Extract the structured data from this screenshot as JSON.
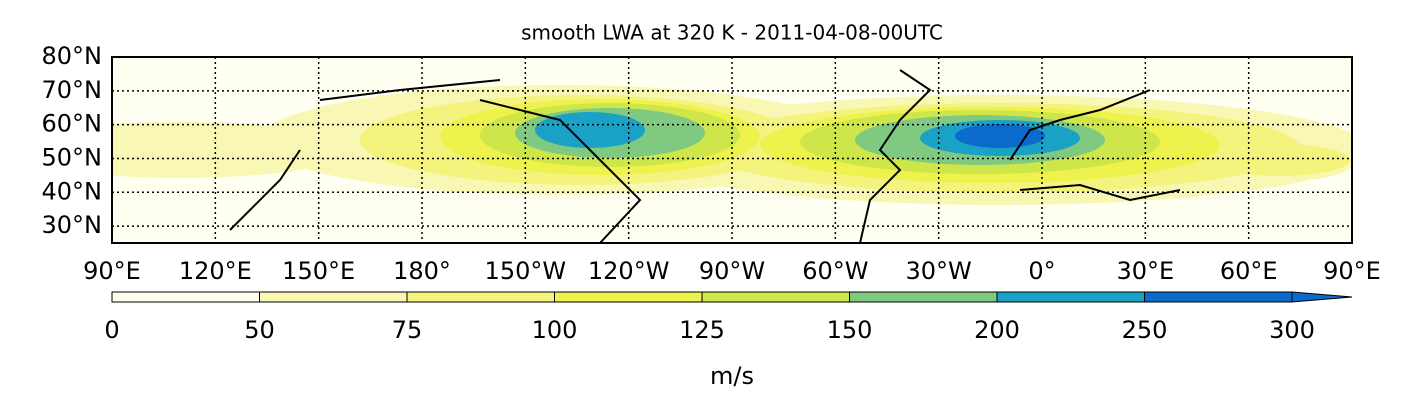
{
  "title": "smooth LWA at 320 K -  2011-04-08-00UTC",
  "map": {
    "lat_range": [
      25,
      80
    ],
    "lat_ticks": [
      {
        "value": 80,
        "label": "80°N"
      },
      {
        "value": 70,
        "label": "70°N"
      },
      {
        "value": 60,
        "label": "60°N"
      },
      {
        "value": 50,
        "label": "50°N"
      },
      {
        "value": 40,
        "label": "40°N"
      },
      {
        "value": 30,
        "label": "30°N"
      }
    ],
    "lon_start": 90,
    "lon_ticks": [
      {
        "value": 90,
        "label": "90°E"
      },
      {
        "value": 120,
        "label": "120°E"
      },
      {
        "value": 150,
        "label": "150°E"
      },
      {
        "value": 180,
        "label": "180°"
      },
      {
        "value": -150,
        "label": "150°W"
      },
      {
        "value": -120,
        "label": "120°W"
      },
      {
        "value": -90,
        "label": "90°W"
      },
      {
        "value": -60,
        "label": "60°W"
      },
      {
        "value": -30,
        "label": "30°W"
      },
      {
        "value": 0,
        "label": "0°"
      },
      {
        "value": 30,
        "label": "30°E"
      },
      {
        "value": 60,
        "label": "60°E"
      },
      {
        "value": 90,
        "label": "90°E"
      }
    ]
  },
  "colorbar": {
    "levels": [
      0,
      50,
      75,
      100,
      125,
      150,
      200,
      250,
      300
    ],
    "colors": [
      "#fffff2",
      "#f8f8b4",
      "#f3f37e",
      "#eef24c",
      "#cfe64a",
      "#7fca80",
      "#1aa2c6",
      "#0a6bcc"
    ],
    "label": "m/s"
  }
}
